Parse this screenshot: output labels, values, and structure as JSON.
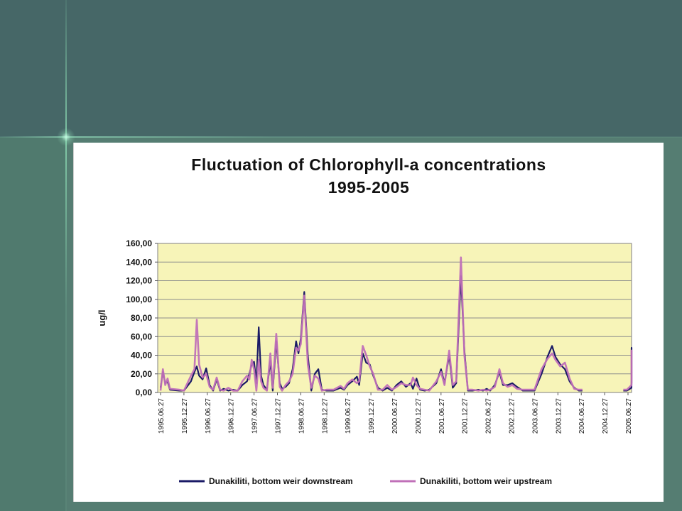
{
  "chart_data": {
    "type": "line",
    "title": "Fluctuation of Chlorophyll-a concentrations",
    "subtitle": "1995-2005",
    "ylabel": "ug/l",
    "xlabel": "",
    "ylim": [
      0,
      160
    ],
    "yticks": [
      "0,00",
      "20,00",
      "40,00",
      "60,00",
      "80,00",
      "100,00",
      "120,00",
      "140,00",
      "160,00"
    ],
    "xlim": [
      0,
      21
    ],
    "xticks": [
      "1995.06.27",
      "1995.12.27",
      "1996.06.27",
      "1996.12.27",
      "1997.06.27",
      "1997.12.27",
      "1998.06.27",
      "1998.12.27",
      "1999.06.27",
      "1999.12.27",
      "2000.06.27",
      "2000.12.27",
      "2001.06.27",
      "2001.12.27",
      "2002.06.27",
      "2002.12.27",
      "2003.06.27",
      "2003.12.27",
      "2004.06.27",
      "2004.12.27",
      "2005.06.27"
    ],
    "plot_background": "#f7f4b8",
    "grid": true,
    "legend_position": "bottom",
    "series": [
      {
        "name": "Dunakiliti, bottom weir downstream",
        "color": "#1a1a66",
        "points": [
          [
            0,
            5
          ],
          [
            0.1,
            22
          ],
          [
            0.2,
            10
          ],
          [
            0.3,
            12
          ],
          [
            0.4,
            3
          ],
          [
            0.8,
            2
          ],
          [
            1.0,
            2
          ],
          [
            1.3,
            12
          ],
          [
            1.45,
            22
          ],
          [
            1.55,
            28
          ],
          [
            1.65,
            18
          ],
          [
            1.8,
            14
          ],
          [
            1.95,
            26
          ],
          [
            2.1,
            8
          ],
          [
            2.25,
            2
          ],
          [
            2.4,
            14
          ],
          [
            2.55,
            2
          ],
          [
            2.7,
            4
          ],
          [
            2.9,
            2
          ],
          [
            3.1,
            3
          ],
          [
            3.3,
            2
          ],
          [
            3.5,
            8
          ],
          [
            3.7,
            12
          ],
          [
            3.8,
            20
          ],
          [
            3.9,
            30
          ],
          [
            4.0,
            33
          ],
          [
            4.1,
            10
          ],
          [
            4.2,
            70
          ],
          [
            4.3,
            18
          ],
          [
            4.4,
            8
          ],
          [
            4.55,
            3
          ],
          [
            4.7,
            34
          ],
          [
            4.8,
            2
          ],
          [
            4.95,
            55
          ],
          [
            5.1,
            10
          ],
          [
            5.2,
            4
          ],
          [
            5.35,
            6
          ],
          [
            5.5,
            10
          ],
          [
            5.65,
            25
          ],
          [
            5.8,
            55
          ],
          [
            5.9,
            42
          ],
          [
            6.0,
            58
          ],
          [
            6.15,
            108
          ],
          [
            6.3,
            40
          ],
          [
            6.45,
            2
          ],
          [
            6.6,
            20
          ],
          [
            6.75,
            25
          ],
          [
            6.9,
            3
          ],
          [
            7.1,
            2
          ],
          [
            7.4,
            2
          ],
          [
            7.7,
            5
          ],
          [
            7.85,
            3
          ],
          [
            8.0,
            8
          ],
          [
            8.2,
            12
          ],
          [
            8.4,
            17
          ],
          [
            8.5,
            8
          ],
          [
            8.65,
            42
          ],
          [
            8.8,
            32
          ],
          [
            8.95,
            30
          ],
          [
            9.1,
            18
          ],
          [
            9.3,
            5
          ],
          [
            9.5,
            2
          ],
          [
            9.7,
            5
          ],
          [
            9.9,
            2
          ],
          [
            10.1,
            8
          ],
          [
            10.3,
            12
          ],
          [
            10.5,
            6
          ],
          [
            10.7,
            10
          ],
          [
            10.8,
            4
          ],
          [
            10.95,
            15
          ],
          [
            11.1,
            3
          ],
          [
            11.3,
            2
          ],
          [
            11.5,
            3
          ],
          [
            11.8,
            10
          ],
          [
            12.0,
            25
          ],
          [
            12.15,
            10
          ],
          [
            12.35,
            40
          ],
          [
            12.5,
            5
          ],
          [
            12.65,
            10
          ],
          [
            12.85,
            125
          ],
          [
            13.0,
            45
          ],
          [
            13.15,
            2
          ],
          [
            13.35,
            2
          ],
          [
            13.6,
            3
          ],
          [
            13.8,
            2
          ],
          [
            13.95,
            4
          ],
          [
            14.1,
            2
          ],
          [
            14.3,
            8
          ],
          [
            14.5,
            22
          ],
          [
            14.65,
            8
          ],
          [
            14.85,
            8
          ],
          [
            15.05,
            10
          ],
          [
            15.25,
            6
          ],
          [
            15.5,
            2
          ],
          [
            15.75,
            2
          ],
          [
            16.0,
            2
          ],
          [
            16.3,
            20
          ],
          [
            16.55,
            38
          ],
          [
            16.75,
            50
          ],
          [
            16.9,
            38
          ],
          [
            17.1,
            30
          ],
          [
            17.3,
            25
          ],
          [
            17.5,
            12
          ],
          [
            17.7,
            5
          ],
          [
            17.9,
            2
          ],
          [
            18.05,
            2
          ]
        ],
        "points2": [
          [
            19.8,
            2
          ],
          [
            19.95,
            2
          ],
          [
            20.15,
            5
          ],
          [
            20.35,
            15
          ],
          [
            20.55,
            48
          ],
          [
            20.7,
            20
          ],
          [
            20.85,
            25
          ],
          [
            21.0,
            18
          ],
          [
            21.2,
            20
          ],
          [
            21.35,
            14
          ],
          [
            21.5,
            18
          ],
          [
            21.65,
            12
          ],
          [
            21.85,
            10
          ],
          [
            22.0,
            15
          ]
        ]
      },
      {
        "name": "Dunakiliti, bottom weir upstream",
        "color": "#c070b8",
        "points": [
          [
            0,
            2
          ],
          [
            0.1,
            25
          ],
          [
            0.2,
            8
          ],
          [
            0.3,
            15
          ],
          [
            0.4,
            4
          ],
          [
            0.8,
            3
          ],
          [
            1.0,
            2
          ],
          [
            1.3,
            18
          ],
          [
            1.45,
            25
          ],
          [
            1.55,
            78
          ],
          [
            1.65,
            30
          ],
          [
            1.8,
            16
          ],
          [
            1.95,
            20
          ],
          [
            2.1,
            6
          ],
          [
            2.25,
            3
          ],
          [
            2.4,
            16
          ],
          [
            2.55,
            3
          ],
          [
            2.7,
            2
          ],
          [
            2.9,
            5
          ],
          [
            3.1,
            2
          ],
          [
            3.3,
            2
          ],
          [
            3.5,
            12
          ],
          [
            3.7,
            18
          ],
          [
            3.8,
            14
          ],
          [
            3.9,
            35
          ],
          [
            4.0,
            25
          ],
          [
            4.1,
            2
          ],
          [
            4.2,
            35
          ],
          [
            4.3,
            12
          ],
          [
            4.4,
            5
          ],
          [
            4.55,
            2
          ],
          [
            4.7,
            42
          ],
          [
            4.8,
            5
          ],
          [
            4.95,
            63
          ],
          [
            5.1,
            6
          ],
          [
            5.2,
            2
          ],
          [
            5.35,
            8
          ],
          [
            5.5,
            12
          ],
          [
            5.65,
            20
          ],
          [
            5.8,
            48
          ],
          [
            5.9,
            45
          ],
          [
            6.0,
            52
          ],
          [
            6.15,
            104
          ],
          [
            6.3,
            30
          ],
          [
            6.45,
            5
          ],
          [
            6.6,
            18
          ],
          [
            6.75,
            15
          ],
          [
            6.9,
            2
          ],
          [
            7.1,
            3
          ],
          [
            7.4,
            3
          ],
          [
            7.7,
            7
          ],
          [
            7.85,
            4
          ],
          [
            8.0,
            10
          ],
          [
            8.2,
            14
          ],
          [
            8.4,
            10
          ],
          [
            8.5,
            12
          ],
          [
            8.65,
            50
          ],
          [
            8.8,
            40
          ],
          [
            8.95,
            28
          ],
          [
            9.1,
            20
          ],
          [
            9.3,
            3
          ],
          [
            9.5,
            3
          ],
          [
            9.7,
            8
          ],
          [
            9.9,
            3
          ],
          [
            10.1,
            6
          ],
          [
            10.3,
            10
          ],
          [
            10.5,
            8
          ],
          [
            10.7,
            8
          ],
          [
            10.8,
            16
          ],
          [
            10.95,
            8
          ],
          [
            11.1,
            4
          ],
          [
            11.3,
            3
          ],
          [
            11.5,
            2
          ],
          [
            11.8,
            12
          ],
          [
            12.0,
            22
          ],
          [
            12.15,
            8
          ],
          [
            12.35,
            45
          ],
          [
            12.5,
            8
          ],
          [
            12.65,
            12
          ],
          [
            12.85,
            145
          ],
          [
            13.0,
            40
          ],
          [
            13.15,
            3
          ],
          [
            13.35,
            3
          ],
          [
            13.6,
            2
          ],
          [
            13.8,
            3
          ],
          [
            13.95,
            2
          ],
          [
            14.1,
            3
          ],
          [
            14.3,
            6
          ],
          [
            14.5,
            25
          ],
          [
            14.65,
            10
          ],
          [
            14.85,
            6
          ],
          [
            15.05,
            8
          ],
          [
            15.25,
            4
          ],
          [
            15.5,
            3
          ],
          [
            15.75,
            3
          ],
          [
            16.0,
            3
          ],
          [
            16.3,
            25
          ],
          [
            16.55,
            36
          ],
          [
            16.75,
            42
          ],
          [
            16.9,
            35
          ],
          [
            17.1,
            28
          ],
          [
            17.3,
            32
          ],
          [
            17.5,
            15
          ],
          [
            17.7,
            4
          ],
          [
            17.9,
            3
          ],
          [
            18.05,
            3
          ]
        ],
        "points2": [
          [
            19.8,
            3
          ],
          [
            19.95,
            3
          ],
          [
            20.15,
            8
          ],
          [
            20.35,
            12
          ],
          [
            20.55,
            45
          ],
          [
            20.7,
            12
          ],
          [
            20.85,
            20
          ],
          [
            21.0,
            22
          ],
          [
            21.2,
            15
          ],
          [
            21.35,
            16
          ],
          [
            21.5,
            14
          ],
          [
            21.65,
            14
          ],
          [
            21.85,
            12
          ],
          [
            22.0,
            30
          ]
        ]
      }
    ]
  }
}
